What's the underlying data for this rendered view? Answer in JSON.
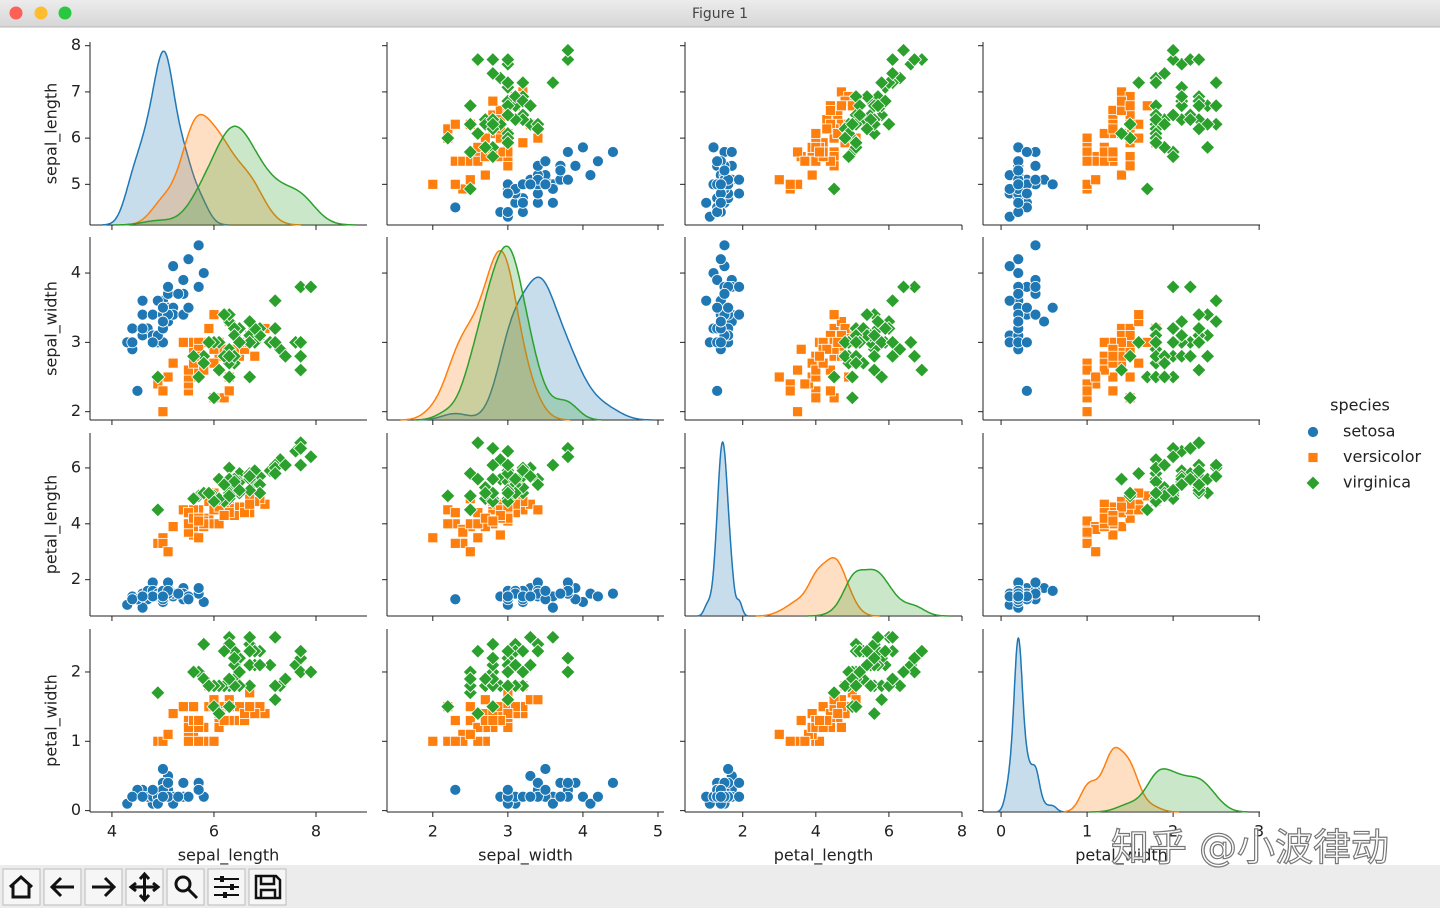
{
  "window": {
    "title": "Figure 1"
  },
  "watermark": "知乎 @小波律动",
  "chart_data": {
    "type": "pairplot",
    "variables": [
      "sepal_length",
      "sepal_width",
      "petal_length",
      "petal_width"
    ],
    "axes": [
      {
        "xlim": [
          3.57,
          9.0
        ],
        "xticks": [
          4,
          6,
          8
        ],
        "ylim": [
          4.12,
          8.08
        ],
        "yticks": [
          5,
          6,
          7,
          8
        ]
      },
      {
        "xlim": [
          1.39,
          5.08
        ],
        "xticks": [
          2,
          3,
          4,
          5
        ],
        "ylim": [
          1.88,
          4.52
        ],
        "yticks": [
          2,
          3,
          4
        ]
      },
      {
        "xlim": [
          0.42,
          8.0
        ],
        "xticks": [
          2,
          4,
          6,
          8
        ],
        "ylim": [
          0.7,
          7.25
        ],
        "yticks": [
          2,
          4,
          6
        ]
      },
      {
        "xlim": [
          -0.21,
          3.01
        ],
        "xticks": [
          0,
          1,
          2,
          3
        ],
        "ylim": [
          -0.02,
          2.62
        ],
        "yticks": [
          0,
          1,
          2
        ]
      }
    ],
    "legend_title": "species",
    "series": [
      {
        "name": "setosa",
        "color": "#1f77b4",
        "marker": "circle",
        "values": [
          [
            5.1,
            3.5,
            1.4,
            0.2
          ],
          [
            4.9,
            3.0,
            1.4,
            0.2
          ],
          [
            4.7,
            3.2,
            1.3,
            0.2
          ],
          [
            4.6,
            3.1,
            1.5,
            0.2
          ],
          [
            5.0,
            3.6,
            1.4,
            0.2
          ],
          [
            5.4,
            3.9,
            1.7,
            0.4
          ],
          [
            4.6,
            3.4,
            1.4,
            0.3
          ],
          [
            5.0,
            3.4,
            1.5,
            0.2
          ],
          [
            4.4,
            2.9,
            1.4,
            0.2
          ],
          [
            4.9,
            3.1,
            1.5,
            0.1
          ],
          [
            5.4,
            3.7,
            1.5,
            0.2
          ],
          [
            4.8,
            3.4,
            1.6,
            0.2
          ],
          [
            4.8,
            3.0,
            1.4,
            0.1
          ],
          [
            4.3,
            3.0,
            1.1,
            0.1
          ],
          [
            5.8,
            4.0,
            1.2,
            0.2
          ],
          [
            5.7,
            4.4,
            1.5,
            0.4
          ],
          [
            5.4,
            3.9,
            1.3,
            0.4
          ],
          [
            5.1,
            3.5,
            1.4,
            0.3
          ],
          [
            5.7,
            3.8,
            1.7,
            0.3
          ],
          [
            5.1,
            3.8,
            1.5,
            0.3
          ],
          [
            5.4,
            3.4,
            1.7,
            0.2
          ],
          [
            5.1,
            3.7,
            1.5,
            0.4
          ],
          [
            4.6,
            3.6,
            1.0,
            0.2
          ],
          [
            5.1,
            3.3,
            1.7,
            0.5
          ],
          [
            4.8,
            3.4,
            1.9,
            0.2
          ],
          [
            5.0,
            3.0,
            1.6,
            0.2
          ],
          [
            5.0,
            3.4,
            1.6,
            0.4
          ],
          [
            5.2,
            3.5,
            1.5,
            0.2
          ],
          [
            5.2,
            3.4,
            1.4,
            0.2
          ],
          [
            4.7,
            3.2,
            1.6,
            0.2
          ],
          [
            4.8,
            3.1,
            1.6,
            0.2
          ],
          [
            5.4,
            3.4,
            1.5,
            0.4
          ],
          [
            5.2,
            4.1,
            1.5,
            0.1
          ],
          [
            5.5,
            4.2,
            1.4,
            0.2
          ],
          [
            4.9,
            3.1,
            1.5,
            0.2
          ],
          [
            5.0,
            3.2,
            1.2,
            0.2
          ],
          [
            5.5,
            3.5,
            1.3,
            0.2
          ],
          [
            4.9,
            3.6,
            1.4,
            0.1
          ],
          [
            4.4,
            3.0,
            1.3,
            0.2
          ],
          [
            5.1,
            3.4,
            1.5,
            0.2
          ],
          [
            5.0,
            3.5,
            1.3,
            0.3
          ],
          [
            4.5,
            2.3,
            1.3,
            0.3
          ],
          [
            4.4,
            3.2,
            1.3,
            0.2
          ],
          [
            5.0,
            3.5,
            1.6,
            0.6
          ],
          [
            5.1,
            3.8,
            1.9,
            0.4
          ],
          [
            4.8,
            3.0,
            1.4,
            0.3
          ],
          [
            5.1,
            3.8,
            1.6,
            0.2
          ],
          [
            4.6,
            3.2,
            1.4,
            0.2
          ],
          [
            5.3,
            3.7,
            1.5,
            0.2
          ],
          [
            5.0,
            3.3,
            1.4,
            0.2
          ]
        ]
      },
      {
        "name": "versicolor",
        "color": "#ff7f0e",
        "marker": "square",
        "values": [
          [
            7.0,
            3.2,
            4.7,
            1.4
          ],
          [
            6.4,
            3.2,
            4.5,
            1.5
          ],
          [
            6.9,
            3.1,
            4.9,
            1.5
          ],
          [
            5.5,
            2.3,
            4.0,
            1.3
          ],
          [
            6.5,
            2.8,
            4.6,
            1.5
          ],
          [
            5.7,
            2.8,
            4.5,
            1.3
          ],
          [
            6.3,
            3.3,
            4.7,
            1.6
          ],
          [
            4.9,
            2.4,
            3.3,
            1.0
          ],
          [
            6.6,
            2.9,
            4.6,
            1.3
          ],
          [
            5.2,
            2.7,
            3.9,
            1.4
          ],
          [
            5.0,
            2.0,
            3.5,
            1.0
          ],
          [
            5.9,
            3.0,
            4.2,
            1.5
          ],
          [
            6.0,
            2.2,
            4.0,
            1.0
          ],
          [
            6.1,
            2.9,
            4.7,
            1.4
          ],
          [
            5.6,
            2.9,
            3.6,
            1.3
          ],
          [
            6.7,
            3.1,
            4.4,
            1.4
          ],
          [
            5.6,
            3.0,
            4.5,
            1.5
          ],
          [
            5.8,
            2.7,
            4.1,
            1.0
          ],
          [
            6.2,
            2.2,
            4.5,
            1.5
          ],
          [
            5.6,
            2.5,
            3.9,
            1.1
          ],
          [
            5.9,
            3.2,
            4.8,
            1.8
          ],
          [
            6.1,
            2.8,
            4.0,
            1.3
          ],
          [
            6.3,
            2.5,
            4.9,
            1.5
          ],
          [
            6.1,
            2.8,
            4.7,
            1.2
          ],
          [
            6.4,
            2.9,
            4.3,
            1.3
          ],
          [
            6.6,
            3.0,
            4.4,
            1.4
          ],
          [
            6.8,
            2.8,
            4.8,
            1.4
          ],
          [
            6.7,
            3.0,
            5.0,
            1.7
          ],
          [
            6.0,
            2.9,
            4.5,
            1.5
          ],
          [
            5.7,
            2.6,
            3.5,
            1.0
          ],
          [
            5.5,
            2.4,
            3.8,
            1.1
          ],
          [
            5.5,
            2.4,
            3.7,
            1.0
          ],
          [
            5.8,
            2.7,
            3.9,
            1.2
          ],
          [
            6.0,
            2.7,
            5.1,
            1.6
          ],
          [
            5.4,
            3.0,
            4.5,
            1.5
          ],
          [
            6.0,
            3.4,
            4.5,
            1.6
          ],
          [
            6.7,
            3.1,
            4.7,
            1.5
          ],
          [
            6.3,
            2.3,
            4.4,
            1.3
          ],
          [
            5.6,
            3.0,
            4.1,
            1.3
          ],
          [
            5.5,
            2.5,
            4.0,
            1.3
          ],
          [
            5.5,
            2.6,
            4.4,
            1.2
          ],
          [
            6.1,
            3.0,
            4.6,
            1.4
          ],
          [
            5.8,
            2.6,
            4.0,
            1.2
          ],
          [
            5.0,
            2.3,
            3.3,
            1.0
          ],
          [
            5.6,
            2.7,
            4.2,
            1.3
          ],
          [
            5.7,
            3.0,
            4.2,
            1.2
          ],
          [
            5.7,
            2.9,
            4.2,
            1.3
          ],
          [
            6.2,
            2.9,
            4.3,
            1.3
          ],
          [
            5.1,
            2.5,
            3.0,
            1.1
          ],
          [
            5.7,
            2.8,
            4.1,
            1.3
          ]
        ]
      },
      {
        "name": "virginica",
        "color": "#2ca02c",
        "marker": "diamond",
        "values": [
          [
            6.3,
            3.3,
            6.0,
            2.5
          ],
          [
            5.8,
            2.7,
            5.1,
            1.9
          ],
          [
            7.1,
            3.0,
            5.9,
            2.1
          ],
          [
            6.3,
            2.9,
            5.6,
            1.8
          ],
          [
            6.5,
            3.0,
            5.8,
            2.2
          ],
          [
            7.6,
            3.0,
            6.6,
            2.1
          ],
          [
            4.9,
            2.5,
            4.5,
            1.7
          ],
          [
            7.3,
            2.9,
            6.3,
            1.8
          ],
          [
            6.7,
            2.5,
            5.8,
            1.8
          ],
          [
            7.2,
            3.6,
            6.1,
            2.5
          ],
          [
            6.5,
            3.2,
            5.1,
            2.0
          ],
          [
            6.4,
            2.7,
            5.3,
            1.9
          ],
          [
            6.8,
            3.0,
            5.5,
            2.1
          ],
          [
            5.7,
            2.5,
            5.0,
            2.0
          ],
          [
            5.8,
            2.8,
            5.1,
            2.4
          ],
          [
            6.4,
            3.2,
            5.3,
            2.3
          ],
          [
            6.5,
            3.0,
            5.5,
            1.8
          ],
          [
            7.7,
            3.8,
            6.7,
            2.2
          ],
          [
            7.7,
            2.6,
            6.9,
            2.3
          ],
          [
            6.0,
            2.2,
            5.0,
            1.5
          ],
          [
            6.9,
            3.2,
            5.7,
            2.3
          ],
          [
            5.6,
            2.8,
            4.9,
            2.0
          ],
          [
            7.7,
            2.8,
            6.7,
            2.0
          ],
          [
            6.3,
            2.7,
            4.9,
            1.8
          ],
          [
            6.7,
            3.3,
            5.7,
            2.1
          ],
          [
            7.2,
            3.2,
            6.0,
            1.8
          ],
          [
            6.2,
            2.8,
            4.8,
            1.8
          ],
          [
            6.1,
            3.0,
            4.9,
            1.8
          ],
          [
            6.4,
            2.8,
            5.6,
            2.1
          ],
          [
            7.2,
            3.0,
            5.8,
            1.6
          ],
          [
            7.4,
            2.8,
            6.1,
            1.9
          ],
          [
            7.9,
            3.8,
            6.4,
            2.0
          ],
          [
            6.4,
            2.8,
            5.6,
            2.2
          ],
          [
            6.3,
            2.8,
            5.1,
            1.5
          ],
          [
            6.1,
            2.6,
            5.6,
            1.4
          ],
          [
            7.7,
            3.0,
            6.1,
            2.3
          ],
          [
            6.3,
            3.4,
            5.6,
            2.4
          ],
          [
            6.4,
            3.1,
            5.5,
            1.8
          ],
          [
            6.0,
            3.0,
            4.8,
            1.8
          ],
          [
            6.9,
            3.1,
            5.4,
            2.1
          ],
          [
            6.7,
            3.1,
            5.6,
            2.4
          ],
          [
            6.9,
            3.1,
            5.1,
            2.3
          ],
          [
            5.8,
            2.7,
            5.1,
            1.9
          ],
          [
            6.8,
            3.2,
            5.9,
            2.3
          ],
          [
            6.7,
            3.3,
            5.7,
            2.5
          ],
          [
            6.7,
            3.0,
            5.2,
            2.3
          ],
          [
            6.3,
            2.5,
            5.0,
            1.9
          ],
          [
            6.5,
            3.0,
            5.2,
            2.0
          ],
          [
            6.2,
            3.4,
            5.4,
            2.3
          ],
          [
            5.9,
            3.0,
            5.1,
            1.8
          ]
        ]
      }
    ]
  }
}
